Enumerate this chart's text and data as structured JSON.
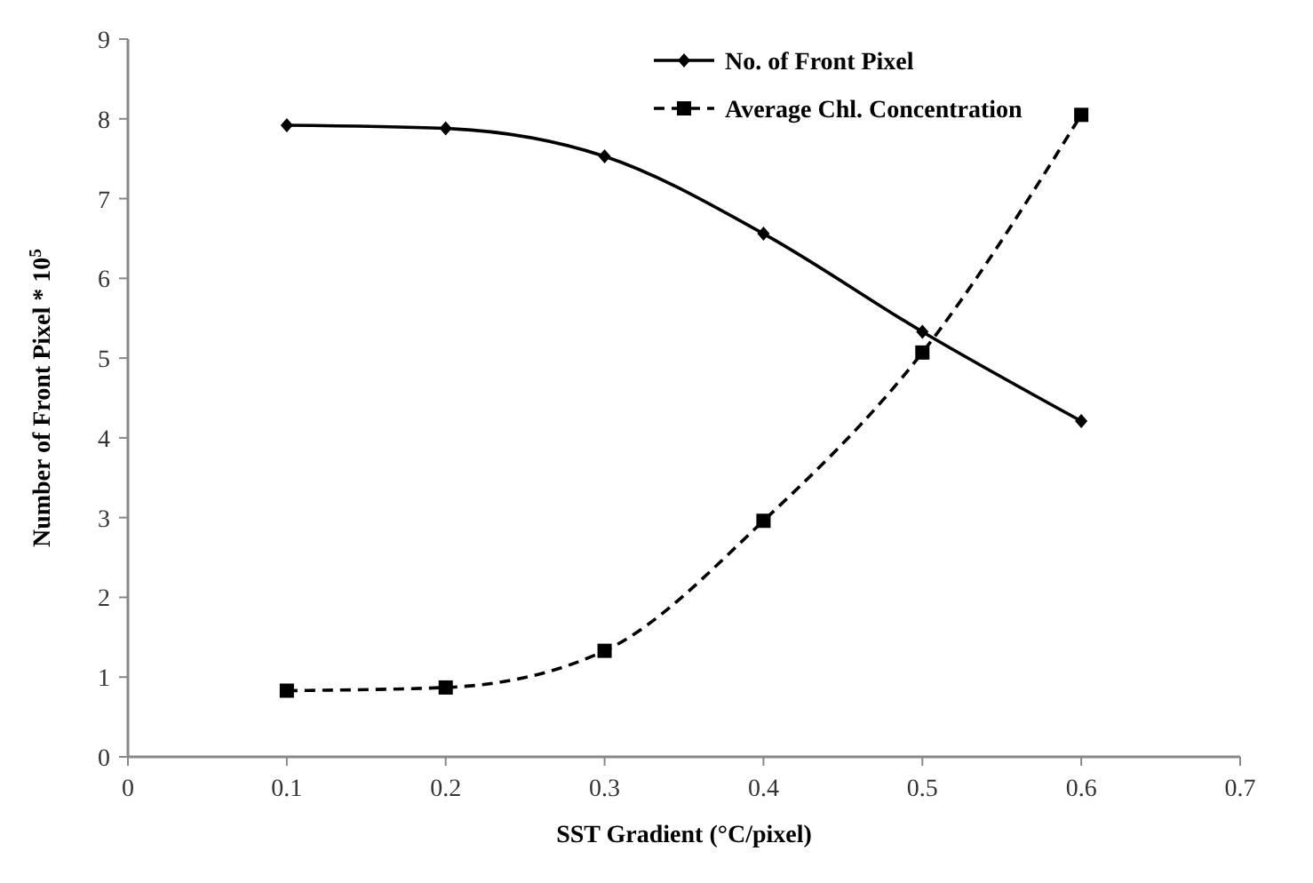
{
  "chart_data": {
    "type": "line",
    "xlabel": "SST Gradient (°C/pixel)",
    "ylabel": "Number of Front Pixel * 10$^{5}$",
    "x": [
      0.1,
      0.2,
      0.3,
      0.4,
      0.5,
      0.6
    ],
    "series": [
      {
        "name": "No. of Front Pixel",
        "color": "#000000",
        "values": [
          7.92,
          7.88,
          7.53,
          6.56,
          5.33,
          4.21
        ],
        "marker": "diamond",
        "line_style": "solid"
      },
      {
        "name": "Average Chl. Concentration",
        "color": "#000000",
        "values": [
          0.83,
          0.87,
          1.33,
          2.96,
          5.07,
          8.05
        ],
        "marker": "square",
        "line_style": "dashed"
      }
    ],
    "xlim": [
      0,
      0.7
    ],
    "xticks": [
      0,
      0.1,
      0.2,
      0.3,
      0.4,
      0.5,
      0.6,
      0.7
    ],
    "ylim": [
      0,
      9
    ],
    "yticks": [
      0,
      1,
      2,
      3,
      4,
      5,
      6,
      7,
      8,
      9
    ],
    "legend": "top right",
    "grid": false
  }
}
